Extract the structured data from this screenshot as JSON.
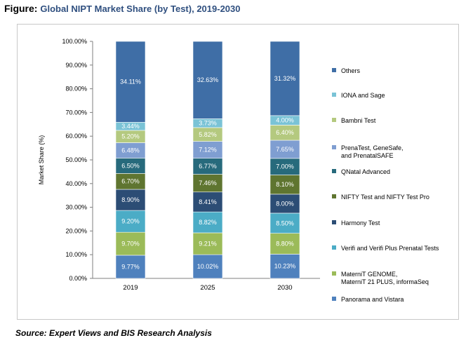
{
  "figure": {
    "title_lead": "Figure:",
    "title": "Global NIPT Market Share (by Test), 2019-2030",
    "source": "Source: Expert Views and BIS Research Analysis"
  },
  "chart_data": {
    "type": "bar",
    "stacked": true,
    "categories": [
      "2019",
      "2025",
      "2030"
    ],
    "ylabel": "Market Share (%)",
    "xlabel": "",
    "ylim": [
      0,
      100
    ],
    "yticks": [
      "0.00%",
      "10.00%",
      "20.00%",
      "30.00%",
      "40.00%",
      "50.00%",
      "60.00%",
      "70.00%",
      "80.00%",
      "90.00%",
      "100.00%"
    ],
    "grid": false,
    "legend_position": "right",
    "series": [
      {
        "name": "Panorama and Vistara",
        "color": "#4f81bd",
        "values": [
          9.77,
          10.02,
          10.23
        ],
        "labels": [
          "9.77%",
          "10.02%",
          "10.23%"
        ]
      },
      {
        "name": "MaterniT GENOME, MaterniT 21 PLUS, informaSeq",
        "color": "#9bbb59",
        "values": [
          9.7,
          9.21,
          8.8
        ],
        "labels": [
          "9.70%",
          "9.21%",
          "8.80%"
        ]
      },
      {
        "name": "Verifi and Verifi Plus Prenatal Tests",
        "color": "#4bacc6",
        "values": [
          9.2,
          8.82,
          8.5
        ],
        "labels": [
          "9.20%",
          "8.82%",
          "8.50%"
        ]
      },
      {
        "name": "Harmony Test",
        "color": "#2c4d75",
        "values": [
          8.9,
          8.41,
          8.0
        ],
        "labels": [
          "8.90%",
          "8.41%",
          "8.00%"
        ]
      },
      {
        "name": "NIFTY Test and NIFTY Test Pro",
        "color": "#5f7530",
        "values": [
          6.7,
          7.46,
          8.1
        ],
        "labels": [
          "6.70%",
          "7.46%",
          "8.10%"
        ]
      },
      {
        "name": "QNatal Advanced",
        "color": "#276a7c",
        "values": [
          6.5,
          6.77,
          7.0
        ],
        "labels": [
          "6.50%",
          "6.77%",
          "7.00%"
        ]
      },
      {
        "name": "PrenaTest, GeneSafe, and PrenatalSAFE",
        "color": "#7f9ed1",
        "values": [
          6.48,
          7.12,
          7.65
        ],
        "labels": [
          "6.48%",
          "7.12%",
          "7.65%"
        ]
      },
      {
        "name": "Bambni Test",
        "color": "#b4c97f",
        "values": [
          5.2,
          5.82,
          6.4
        ],
        "labels": [
          "5.20%",
          "5.82%",
          "6.40%"
        ]
      },
      {
        "name": "IONA and Sage",
        "color": "#7ac3d6",
        "values": [
          3.44,
          3.73,
          4.0
        ],
        "labels": [
          "3.44%",
          "3.73%",
          "4.00%"
        ]
      },
      {
        "name": "Others",
        "color": "#3f6ea6",
        "values": [
          34.11,
          32.63,
          31.32
        ],
        "labels": [
          "34.11%",
          "32.63%",
          "31.32%"
        ]
      }
    ]
  }
}
